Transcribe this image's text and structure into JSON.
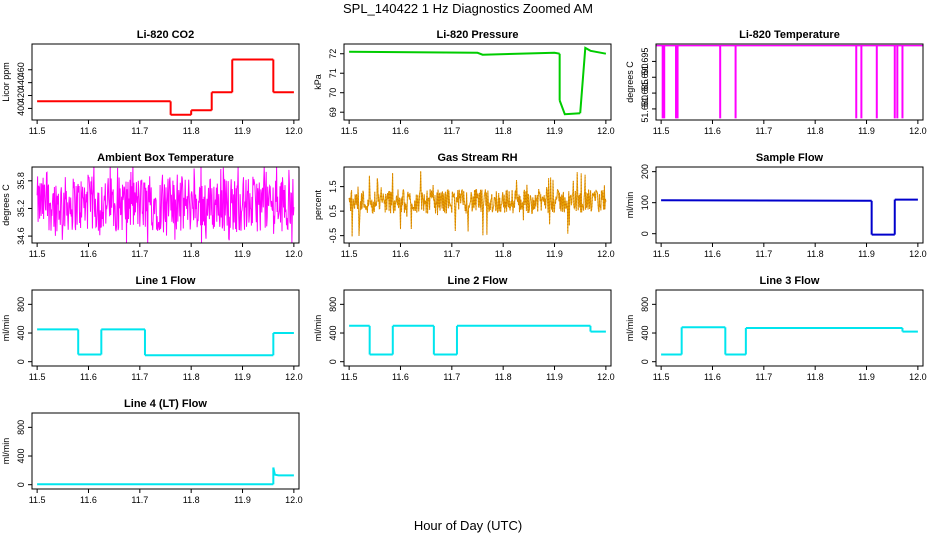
{
  "title": "SPL_140422  1 Hz Diagnostics Zoomed AM",
  "xlabel": "Hour of Day (UTC)",
  "x_ticks": [
    "11.5",
    "11.6",
    "11.7",
    "11.8",
    "11.9",
    "12.0"
  ],
  "chart_data": [
    {
      "type": "line",
      "title": "Li-820 CO2",
      "ylabel": "Licor ppm",
      "color": "#ff0000",
      "xlim": [
        11.49,
        12.01
      ],
      "ylim": [
        382,
        500
      ],
      "yticks": [
        "400",
        "420",
        "440",
        "460"
      ],
      "ytick_values": [
        400,
        420,
        440,
        460
      ],
      "segments": [
        {
          "x": [
            11.5,
            11.76
          ],
          "y": [
            411,
            411
          ]
        },
        {
          "x": [
            11.76,
            11.8
          ],
          "y": [
            390,
            390
          ]
        },
        {
          "x": [
            11.8,
            11.84
          ],
          "y": [
            397,
            397
          ]
        },
        {
          "x": [
            11.84,
            11.88
          ],
          "y": [
            425,
            425
          ]
        },
        {
          "x": [
            11.88,
            11.96
          ],
          "y": [
            476,
            476
          ]
        },
        {
          "x": [
            11.96,
            12.0
          ],
          "y": [
            425,
            425
          ]
        }
      ]
    },
    {
      "type": "line",
      "title": "Li-820 Pressure",
      "ylabel": "kPa",
      "color": "#00cc00",
      "xlim": [
        11.49,
        12.01
      ],
      "ylim": [
        68.6,
        72.5
      ],
      "yticks": [
        "69",
        "70",
        "71",
        "72"
      ],
      "ytick_values": [
        69,
        70,
        71,
        72
      ],
      "segments": [
        {
          "x": [
            11.5,
            11.75,
            11.76,
            11.9,
            11.91
          ],
          "y": [
            72.1,
            72.05,
            71.95,
            72.05,
            72.0
          ]
        },
        {
          "x": [
            11.91,
            11.92,
            11.95
          ],
          "y": [
            69.6,
            68.9,
            68.95
          ]
        },
        {
          "x": [
            11.95,
            11.96,
            11.97,
            12.0
          ],
          "y": [
            68.95,
            72.3,
            72.15,
            72.0
          ]
        }
      ]
    },
    {
      "type": "line",
      "title": "Li-820 Temperature",
      "ylabel": "degrees C",
      "color": "#ff00ff",
      "xlim": [
        11.49,
        12.01
      ],
      "ylim": [
        51.6765,
        51.7005
      ],
      "yticks": [
        "51.680",
        "51.685",
        "51.690",
        "51.695"
      ],
      "ytick_values": [
        51.68,
        51.685,
        51.69,
        51.695
      ],
      "baseline": 51.7,
      "dips_x": [
        11.503,
        11.506,
        11.529,
        11.532,
        11.615,
        11.645,
        11.88,
        11.89,
        11.92,
        11.955,
        11.96,
        11.97
      ],
      "dip_value": 51.677
    },
    {
      "type": "line",
      "title": "Ambient Box Temperature",
      "ylabel": "degrees C",
      "color": "#ff00ff",
      "xlim": [
        11.49,
        12.01
      ],
      "ylim": [
        34.45,
        36.1
      ],
      "yticks": [
        "34.6",
        "35.2",
        "35.8"
      ],
      "ytick_values": [
        34.6,
        35.2,
        35.8
      ],
      "noise_range": [
        34.7,
        35.9
      ]
    },
    {
      "type": "line",
      "title": "Gas Stream RH",
      "ylabel": "percent",
      "color": "#e6a000",
      "xlim": [
        11.49,
        12.01
      ],
      "ylim": [
        -0.8,
        2.3
      ],
      "yticks": [
        "-0.5",
        "0.5",
        "1.5"
      ],
      "ytick_values": [
        -0.5,
        0.5,
        1.5
      ],
      "noise_range": [
        0.4,
        1.4
      ]
    },
    {
      "type": "line",
      "title": "Sample Flow",
      "ylabel": "ml/min",
      "color": "#0000cc",
      "xlim": [
        11.49,
        12.01
      ],
      "ylim": [
        -30,
        215
      ],
      "yticks": [
        "0",
        "100",
        "200"
      ],
      "ytick_values": [
        0,
        100,
        200
      ],
      "segments": [
        {
          "x": [
            11.5,
            11.9,
            11.91
          ],
          "y": [
            108,
            106,
            106
          ]
        },
        {
          "x": [
            11.91,
            11.955
          ],
          "y": [
            -3,
            -3
          ]
        },
        {
          "x": [
            11.955,
            12.0
          ],
          "y": [
            110,
            110
          ]
        }
      ]
    },
    {
      "type": "line",
      "title": "Line 1 Flow",
      "ylabel": "ml/min",
      "color": "#00e5ee",
      "xlim": [
        11.49,
        12.01
      ],
      "ylim": [
        -60,
        1000
      ],
      "yticks": [
        "0",
        "400",
        "800"
      ],
      "ytick_values": [
        0,
        400,
        800
      ],
      "segments": [
        {
          "x": [
            11.5,
            11.58
          ],
          "y": [
            450,
            450
          ]
        },
        {
          "x": [
            11.58,
            11.625
          ],
          "y": [
            100,
            100
          ]
        },
        {
          "x": [
            11.625,
            11.71
          ],
          "y": [
            450,
            450
          ]
        },
        {
          "x": [
            11.71,
            11.96
          ],
          "y": [
            90,
            90
          ]
        },
        {
          "x": [
            11.96,
            12.0
          ],
          "y": [
            400,
            400
          ]
        }
      ]
    },
    {
      "type": "line",
      "title": "Line 2 Flow",
      "ylabel": "ml/min",
      "color": "#00e5ee",
      "xlim": [
        11.49,
        12.01
      ],
      "ylim": [
        -60,
        1000
      ],
      "yticks": [
        "0",
        "400",
        "800"
      ],
      "ytick_values": [
        0,
        400,
        800
      ],
      "segments": [
        {
          "x": [
            11.5,
            11.54
          ],
          "y": [
            500,
            500
          ]
        },
        {
          "x": [
            11.54,
            11.585
          ],
          "y": [
            100,
            100
          ]
        },
        {
          "x": [
            11.585,
            11.665
          ],
          "y": [
            500,
            500
          ]
        },
        {
          "x": [
            11.665,
            11.71
          ],
          "y": [
            100,
            100
          ]
        },
        {
          "x": [
            11.71,
            11.97
          ],
          "y": [
            500,
            500
          ]
        },
        {
          "x": [
            11.97,
            12.0
          ],
          "y": [
            420,
            420
          ]
        }
      ]
    },
    {
      "type": "line",
      "title": "Line 3 Flow",
      "ylabel": "ml/min",
      "color": "#00e5ee",
      "xlim": [
        11.49,
        12.01
      ],
      "ylim": [
        -60,
        1000
      ],
      "yticks": [
        "0",
        "400",
        "800"
      ],
      "ytick_values": [
        0,
        400,
        800
      ],
      "segments": [
        {
          "x": [
            11.5,
            11.54
          ],
          "y": [
            100,
            100
          ]
        },
        {
          "x": [
            11.54,
            11.625
          ],
          "y": [
            480,
            480
          ]
        },
        {
          "x": [
            11.625,
            11.665
          ],
          "y": [
            100,
            100
          ]
        },
        {
          "x": [
            11.665,
            11.97
          ],
          "y": [
            470,
            470
          ]
        },
        {
          "x": [
            11.97,
            12.0
          ],
          "y": [
            420,
            420
          ]
        }
      ]
    },
    {
      "type": "line",
      "title": "Line 4 (LT) Flow",
      "ylabel": "ml/min",
      "color": "#00e5ee",
      "xlim": [
        11.49,
        12.01
      ],
      "ylim": [
        -60,
        1000
      ],
      "yticks": [
        "0",
        "400",
        "800"
      ],
      "ytick_values": [
        0,
        400,
        800
      ],
      "segments": [
        {
          "x": [
            11.5,
            11.96
          ],
          "y": [
            5,
            5
          ]
        },
        {
          "x": [
            11.96,
            11.963,
            11.97,
            12.0
          ],
          "y": [
            240,
            140,
            130,
            130
          ]
        }
      ]
    }
  ]
}
